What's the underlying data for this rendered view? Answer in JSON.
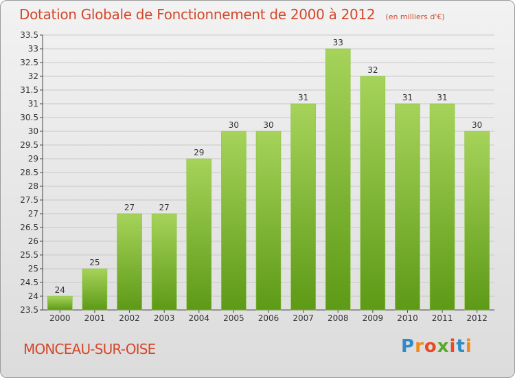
{
  "title": "Dotation Globale de Fonctionnement de 2000 à 2012",
  "unit_note": "(en milliers d'€)",
  "place": "MONCEAU-SUR-OISE",
  "logo": {
    "letters": [
      "P",
      "r",
      "o",
      "x",
      "i",
      "t",
      "i"
    ],
    "colors": [
      "#2e8bc9",
      "#f08a1c",
      "#e84a26",
      "#5aa82a",
      "#e84a26",
      "#2e8bc9",
      "#f08a1c"
    ]
  },
  "colors": {
    "bar_top": "#a6d35a",
    "bar_bottom": "#5d9a16",
    "title": "#d4472a",
    "grid": "#c8c8c8"
  },
  "chart_data": {
    "type": "bar",
    "categories": [
      "2000",
      "2001",
      "2002",
      "2003",
      "2004",
      "2005",
      "2006",
      "2007",
      "2008",
      "2009",
      "2010",
      "2011",
      "2012"
    ],
    "values": [
      24,
      25,
      27,
      27,
      29,
      30,
      30,
      31,
      33,
      32,
      31,
      31,
      30
    ],
    "value_labels": [
      "24",
      "25",
      "27",
      "27",
      "29",
      "30",
      "30",
      "31",
      "33",
      "32",
      "31",
      "31",
      "30"
    ],
    "y_ticks": [
      "23.5",
      "24",
      "24.5",
      "25",
      "25.5",
      "26",
      "26.5",
      "27",
      "27.5",
      "28",
      "28.5",
      "29",
      "29.5",
      "30",
      "30.5",
      "31",
      "31.5",
      "32",
      "32.5",
      "33",
      "33.5"
    ],
    "ylim": [
      23.5,
      33.5
    ],
    "grid": true,
    "title": "Dotation Globale de Fonctionnement de 2000 à 2012"
  }
}
